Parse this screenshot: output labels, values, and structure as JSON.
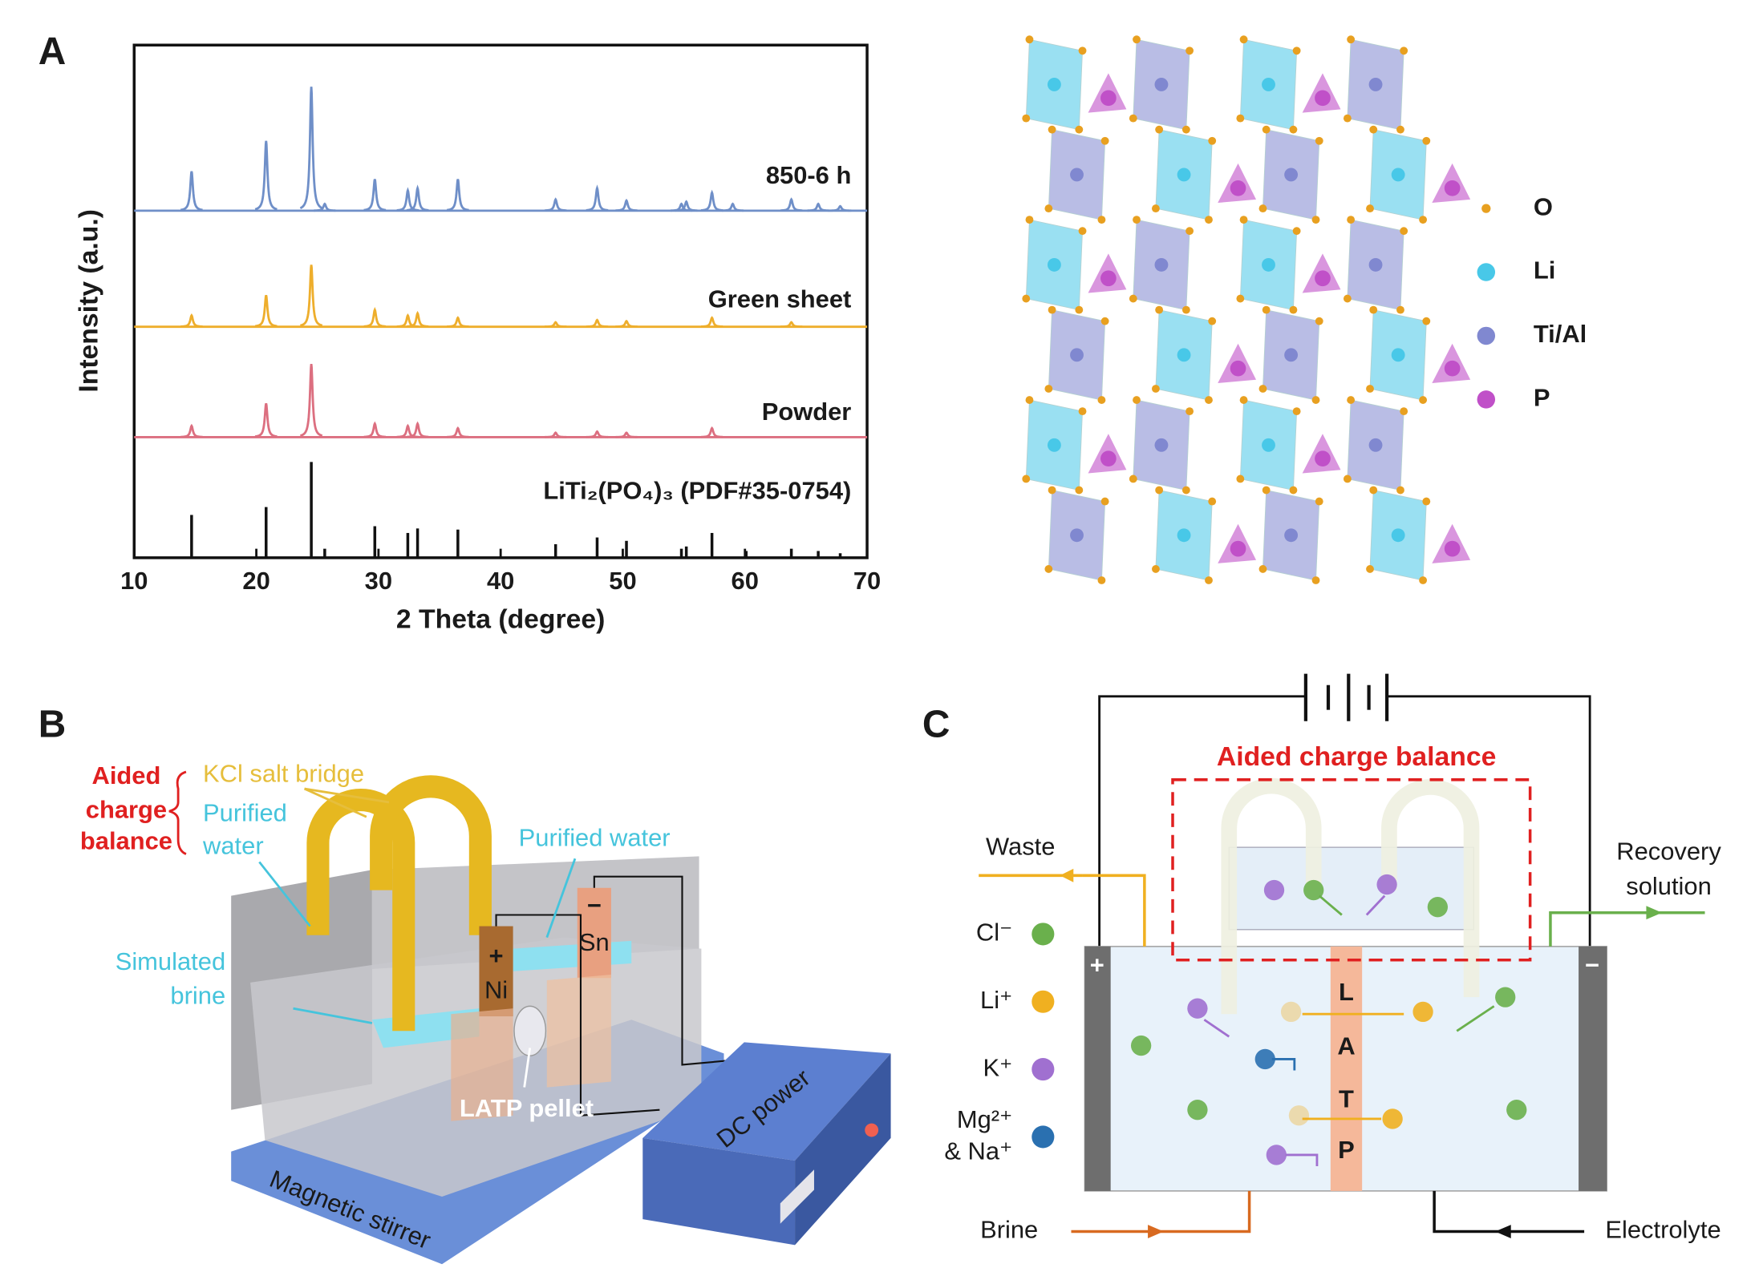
{
  "panel_labels": [
    "A",
    "B",
    "C"
  ],
  "chart_data": {
    "type": "xrd",
    "xlabel": "2 Theta (degree)",
    "ylabel": "Intensity (a.u.)",
    "xlim": [
      10,
      70
    ],
    "xticks": [
      10,
      20,
      30,
      40,
      50,
      60,
      70
    ],
    "series": [
      {
        "name": "850-6 h",
        "color": "#6f8fc8",
        "kind": "curve",
        "x": [
          14.7,
          20.8,
          24.5,
          25.6,
          29.7,
          32.4,
          33.2,
          36.5,
          44.5,
          47.9,
          50.3,
          54.8,
          55.2,
          57.3,
          59.0,
          63.8,
          66.0,
          67.8
        ],
        "values": [
          35,
          62,
          110,
          6,
          28,
          18,
          20,
          28,
          10,
          20,
          9,
          6,
          8,
          16,
          6,
          10,
          6,
          4
        ]
      },
      {
        "name": "Green sheet",
        "color": "#eeae2c",
        "kind": "curve",
        "x": [
          14.7,
          20.8,
          24.5,
          29.7,
          32.4,
          33.2,
          36.5,
          44.5,
          47.9,
          50.3,
          57.3,
          63.8
        ],
        "values": [
          10,
          28,
          55,
          15,
          10,
          12,
          8,
          4,
          6,
          5,
          8,
          4
        ]
      },
      {
        "name": "Powder",
        "color": "#dc6f80",
        "kind": "curve",
        "x": [
          14.7,
          20.8,
          24.5,
          29.7,
          32.4,
          33.2,
          36.5,
          44.5,
          47.9,
          50.3,
          57.3
        ],
        "values": [
          10,
          30,
          65,
          12,
          10,
          12,
          8,
          4,
          5,
          4,
          8
        ]
      },
      {
        "name": "LiTi₂(PO₄)₃ (PDF#35-0754)",
        "color": "#111111",
        "kind": "stick",
        "x": [
          14.7,
          20.8,
          24.5,
          25.6,
          29.7,
          32.4,
          33.2,
          36.5,
          44.5,
          47.9,
          50.3,
          54.8,
          55.2,
          57.3,
          60.1,
          63.8,
          66.0,
          67.8
        ],
        "values": [
          38,
          45,
          85,
          8,
          28,
          22,
          26,
          25,
          12,
          18,
          15,
          8,
          10,
          22,
          6,
          8,
          6,
          4
        ]
      }
    ]
  },
  "structure_legend": [
    {
      "label": "O",
      "color": "#e8a020"
    },
    {
      "label": "Li",
      "color": "#48c8e8"
    },
    {
      "label": "Ti/Al",
      "color": "#8088d0"
    },
    {
      "label": "P",
      "color": "#c050c8"
    }
  ],
  "panel_b": {
    "aided": [
      "Aided",
      "charge",
      "balance"
    ],
    "salt_bridge": "KCl salt bridge",
    "purified_left": [
      "Purified",
      "water"
    ],
    "purified_right": "Purified water",
    "brine": [
      "Simulated",
      "brine"
    ],
    "anode": [
      "+",
      "Ni"
    ],
    "cathode": [
      "−",
      "Sn"
    ],
    "pellet": "LATP pellet",
    "power": "DC power",
    "stirrer": "Magnetic stirrer"
  },
  "panel_c": {
    "title": "Aided charge balance",
    "waste": "Waste",
    "recovery": [
      "Recovery",
      "solution"
    ],
    "ions": [
      {
        "label": [
          "Cl⁻"
        ],
        "color": "#6ab04c"
      },
      {
        "label": [
          "Li⁺"
        ],
        "color": "#f0b020"
      },
      {
        "label": [
          "K⁺"
        ],
        "color": "#a070d0"
      },
      {
        "label": [
          "Mg²⁺",
          "& Na⁺"
        ],
        "color": "#2a70b0"
      }
    ],
    "plus": "+",
    "minus": "−",
    "membrane": [
      "L",
      "A",
      "T",
      "P"
    ],
    "brine": "Brine",
    "electrolyte": "Electrolyte"
  }
}
